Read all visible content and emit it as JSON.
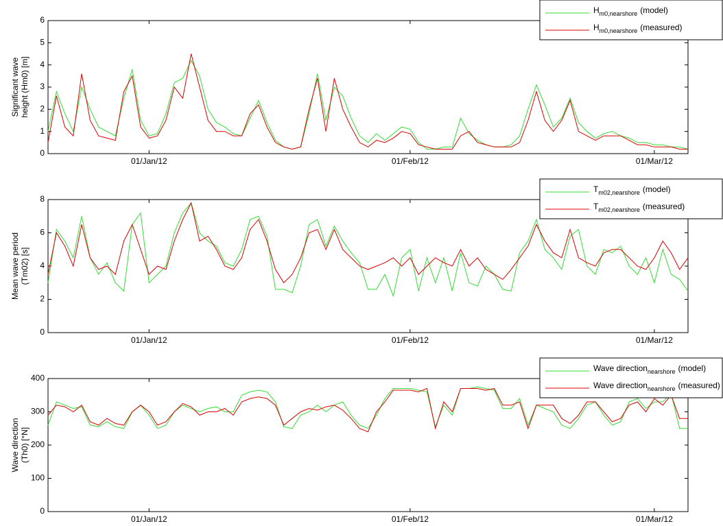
{
  "chart_data": [
    {
      "type": "line",
      "ylabel": [
        "Significant wave",
        "height (Hm0) [m]"
      ],
      "x": [
        "2011-12-20",
        "2011-12-21",
        "2011-12-22",
        "2011-12-23",
        "2011-12-24",
        "2011-12-25",
        "2011-12-26",
        "2011-12-27",
        "2011-12-28",
        "2011-12-29",
        "2011-12-30",
        "2011-12-31",
        "2012-01-01",
        "2012-01-02",
        "2012-01-03",
        "2012-01-04",
        "2012-01-05",
        "2012-01-06",
        "2012-01-07",
        "2012-01-08",
        "2012-01-09",
        "2012-01-10",
        "2012-01-11",
        "2012-01-12",
        "2012-01-13",
        "2012-01-14",
        "2012-01-15",
        "2012-01-16",
        "2012-01-17",
        "2012-01-18",
        "2012-01-19",
        "2012-01-20",
        "2012-01-21",
        "2012-01-22",
        "2012-01-23",
        "2012-01-24",
        "2012-01-25",
        "2012-01-26",
        "2012-01-27",
        "2012-01-28",
        "2012-01-29",
        "2012-01-30",
        "2012-01-31",
        "2012-02-01",
        "2012-02-02",
        "2012-02-03",
        "2012-02-04",
        "2012-02-05",
        "2012-02-06",
        "2012-02-07",
        "2012-02-08",
        "2012-02-09",
        "2012-02-10",
        "2012-02-11",
        "2012-02-12",
        "2012-02-13",
        "2012-02-14",
        "2012-02-15",
        "2012-02-16",
        "2012-02-17",
        "2012-02-18",
        "2012-02-19",
        "2012-02-20",
        "2012-02-21",
        "2012-02-22",
        "2012-02-23",
        "2012-02-24",
        "2012-02-25",
        "2012-02-26",
        "2012-02-27",
        "2012-02-28",
        "2012-02-29",
        "2012-03-01",
        "2012-03-02",
        "2012-03-03",
        "2012-03-04",
        "2012-03-05"
      ],
      "xlim": [
        "2011-12-20",
        "2012-03-05"
      ],
      "xticks": [
        {
          "value": "2012-01-01",
          "label": "01/Jan/12"
        },
        {
          "value": "2012-02-01",
          "label": "01/Feb/12"
        },
        {
          "value": "2012-03-01",
          "label": "01/Mar/12"
        }
      ],
      "ylim": [
        0,
        6
      ],
      "yticks": [
        0,
        1,
        2,
        3,
        4,
        5,
        6
      ],
      "series": [
        {
          "name": {
            "base": "H",
            "sub": "m0,nearshore",
            "suffix": "(model)"
          },
          "color": "#33dd33",
          "values": [
            1.0,
            2.8,
            1.8,
            1.0,
            3.0,
            2.0,
            1.2,
            1.0,
            0.8,
            2.5,
            3.8,
            1.5,
            0.8,
            0.9,
            1.8,
            3.2,
            3.4,
            4.2,
            3.5,
            2.0,
            1.4,
            1.2,
            0.9,
            0.8,
            1.6,
            2.4,
            1.4,
            0.6,
            0.3,
            0.2,
            0.3,
            1.8,
            3.6,
            1.5,
            3.0,
            2.6,
            1.6,
            0.8,
            0.5,
            0.9,
            0.6,
            0.9,
            1.2,
            1.1,
            0.5,
            0.2,
            0.2,
            0.3,
            0.3,
            1.6,
            0.9,
            0.6,
            0.4,
            0.3,
            0.3,
            0.4,
            0.8,
            2.0,
            3.1,
            2.2,
            1.2,
            1.6,
            2.5,
            1.4,
            1.0,
            0.7,
            0.9,
            1.0,
            0.8,
            0.7,
            0.5,
            0.5,
            0.4,
            0.4,
            0.3,
            0.3,
            0.2
          ]
        },
        {
          "name": {
            "base": "H",
            "sub": "m0,nearshore",
            "suffix": "(measured)"
          },
          "color": "#dd0000",
          "values": [
            0.5,
            2.6,
            1.2,
            0.8,
            3.6,
            1.5,
            0.8,
            0.7,
            0.6,
            2.8,
            3.5,
            1.2,
            0.7,
            0.8,
            1.5,
            3.0,
            2.5,
            4.5,
            3.0,
            1.5,
            1.0,
            1.0,
            0.8,
            0.8,
            1.8,
            2.2,
            1.2,
            0.5,
            0.3,
            0.2,
            0.3,
            2.0,
            3.4,
            1.0,
            3.4,
            2.0,
            1.2,
            0.5,
            0.3,
            0.6,
            0.5,
            0.7,
            1.0,
            0.9,
            0.4,
            0.3,
            0.2,
            0.2,
            0.2,
            0.8,
            1.0,
            0.5,
            0.4,
            0.3,
            0.3,
            0.3,
            0.5,
            1.5,
            2.8,
            1.5,
            1.0,
            1.5,
            2.4,
            1.0,
            0.8,
            0.6,
            0.8,
            0.8,
            0.8,
            0.6,
            0.4,
            0.4,
            0.3,
            0.3,
            0.3,
            0.2,
            0.2
          ]
        }
      ]
    },
    {
      "type": "line",
      "ylabel": [
        "Mean wave period",
        "(Tm02) [s]"
      ],
      "x": [
        "2011-12-20",
        "2011-12-21",
        "2011-12-22",
        "2011-12-23",
        "2011-12-24",
        "2011-12-25",
        "2011-12-26",
        "2011-12-27",
        "2011-12-28",
        "2011-12-29",
        "2011-12-30",
        "2011-12-31",
        "2012-01-01",
        "2012-01-02",
        "2012-01-03",
        "2012-01-04",
        "2012-01-05",
        "2012-01-06",
        "2012-01-07",
        "2012-01-08",
        "2012-01-09",
        "2012-01-10",
        "2012-01-11",
        "2012-01-12",
        "2012-01-13",
        "2012-01-14",
        "2012-01-15",
        "2012-01-16",
        "2012-01-17",
        "2012-01-18",
        "2012-01-19",
        "2012-01-20",
        "2012-01-21",
        "2012-01-22",
        "2012-01-23",
        "2012-01-24",
        "2012-01-25",
        "2012-01-26",
        "2012-01-27",
        "2012-01-28",
        "2012-01-29",
        "2012-01-30",
        "2012-01-31",
        "2012-02-01",
        "2012-02-02",
        "2012-02-03",
        "2012-02-04",
        "2012-02-05",
        "2012-02-06",
        "2012-02-07",
        "2012-02-08",
        "2012-02-09",
        "2012-02-10",
        "2012-02-11",
        "2012-02-12",
        "2012-02-13",
        "2012-02-14",
        "2012-02-15",
        "2012-02-16",
        "2012-02-17",
        "2012-02-18",
        "2012-02-19",
        "2012-02-20",
        "2012-02-21",
        "2012-02-22",
        "2012-02-23",
        "2012-02-24",
        "2012-02-25",
        "2012-02-26",
        "2012-02-27",
        "2012-02-28",
        "2012-02-29",
        "2012-03-01",
        "2012-03-02",
        "2012-03-03",
        "2012-03-04",
        "2012-03-05"
      ],
      "xlim": [
        "2011-12-20",
        "2012-03-05"
      ],
      "xticks": [
        {
          "value": "2012-01-01",
          "label": "01/Jan/12"
        },
        {
          "value": "2012-02-01",
          "label": "01/Feb/12"
        },
        {
          "value": "2012-03-01",
          "label": "01/Mar/12"
        }
      ],
      "ylim": [
        0,
        8
      ],
      "yticks": [
        0,
        2,
        4,
        6,
        8
      ],
      "series": [
        {
          "name": {
            "base": "T",
            "sub": "m02,nearshore",
            "suffix": "(model)"
          },
          "color": "#33dd33",
          "values": [
            3.0,
            6.2,
            5.5,
            4.5,
            7.0,
            4.5,
            3.5,
            4.2,
            3.0,
            2.5,
            6.5,
            7.2,
            3.0,
            3.5,
            4.0,
            6.0,
            7.2,
            7.8,
            6.0,
            5.5,
            5.2,
            4.2,
            4.0,
            5.0,
            6.8,
            7.0,
            5.8,
            2.6,
            2.6,
            2.4,
            4.0,
            6.5,
            6.8,
            5.2,
            6.4,
            5.5,
            4.8,
            4.2,
            2.6,
            2.6,
            3.5,
            2.2,
            4.5,
            5.0,
            2.5,
            4.5,
            3.0,
            4.5,
            2.5,
            4.8,
            3.0,
            2.8,
            4.0,
            3.5,
            2.6,
            2.5,
            4.8,
            5.5,
            6.8,
            5.0,
            4.5,
            3.8,
            5.8,
            6.2,
            4.0,
            3.5,
            5.0,
            4.8,
            5.2,
            4.0,
            3.5,
            4.5,
            3.0,
            5.0,
            3.5,
            3.2,
            2.5
          ]
        },
        {
          "name": {
            "base": "T",
            "sub": "m02,nearshore",
            "suffix": "(measured)"
          },
          "color": "#dd0000",
          "values": [
            3.5,
            6.0,
            5.2,
            4.0,
            6.5,
            4.5,
            3.8,
            4.0,
            3.5,
            5.5,
            6.5,
            5.0,
            3.5,
            4.0,
            3.8,
            5.5,
            6.8,
            7.8,
            5.5,
            5.8,
            5.0,
            4.0,
            3.8,
            4.5,
            6.2,
            6.8,
            5.5,
            3.8,
            3.0,
            3.5,
            4.5,
            6.0,
            6.2,
            5.0,
            6.2,
            5.0,
            4.5,
            4.0,
            3.8,
            4.0,
            4.2,
            4.5,
            4.0,
            4.5,
            3.5,
            4.0,
            4.5,
            4.2,
            4.0,
            5.0,
            4.0,
            4.5,
            3.8,
            3.5,
            3.2,
            3.8,
            4.5,
            5.2,
            6.5,
            5.5,
            4.8,
            4.5,
            6.2,
            4.5,
            4.2,
            4.0,
            4.8,
            5.0,
            5.0,
            4.5,
            4.0,
            3.8,
            4.5,
            5.5,
            4.8,
            3.8,
            4.5
          ]
        }
      ]
    },
    {
      "type": "line",
      "ylabel": [
        "Wave direction",
        "(Th0) [°N]"
      ],
      "x": [
        "2011-12-20",
        "2011-12-21",
        "2011-12-22",
        "2011-12-23",
        "2011-12-24",
        "2011-12-25",
        "2011-12-26",
        "2011-12-27",
        "2011-12-28",
        "2011-12-29",
        "2011-12-30",
        "2011-12-31",
        "2012-01-01",
        "2012-01-02",
        "2012-01-03",
        "2012-01-04",
        "2012-01-05",
        "2012-01-06",
        "2012-01-07",
        "2012-01-08",
        "2012-01-09",
        "2012-01-10",
        "2012-01-11",
        "2012-01-12",
        "2012-01-13",
        "2012-01-14",
        "2012-01-15",
        "2012-01-16",
        "2012-01-17",
        "2012-01-18",
        "2012-01-19",
        "2012-01-20",
        "2012-01-21",
        "2012-01-22",
        "2012-01-23",
        "2012-01-24",
        "2012-01-25",
        "2012-01-26",
        "2012-01-27",
        "2012-01-28",
        "2012-01-29",
        "2012-01-30",
        "2012-01-31",
        "2012-02-01",
        "2012-02-02",
        "2012-02-03",
        "2012-02-04",
        "2012-02-05",
        "2012-02-06",
        "2012-02-07",
        "2012-02-08",
        "2012-02-09",
        "2012-02-10",
        "2012-02-11",
        "2012-02-12",
        "2012-02-13",
        "2012-02-14",
        "2012-02-15",
        "2012-02-16",
        "2012-02-17",
        "2012-02-18",
        "2012-02-19",
        "2012-02-20",
        "2012-02-21",
        "2012-02-22",
        "2012-02-23",
        "2012-02-24",
        "2012-02-25",
        "2012-02-26",
        "2012-02-27",
        "2012-02-28",
        "2012-02-29",
        "2012-03-01",
        "2012-03-02",
        "2012-03-03",
        "2012-03-04",
        "2012-03-05"
      ],
      "xlim": [
        "2011-12-20",
        "2012-03-05"
      ],
      "xticks": [
        {
          "value": "2012-01-01",
          "label": "01/Jan/12"
        },
        {
          "value": "2012-02-01",
          "label": "01/Feb/12"
        },
        {
          "value": "2012-03-01",
          "label": "01/Mar/12"
        }
      ],
      "ylim": [
        0,
        400
      ],
      "yticks": [
        0,
        100,
        200,
        300,
        400
      ],
      "series": [
        {
          "name": {
            "base": "Wave direction",
            "sub": "nearshore",
            "suffix": "(model)"
          },
          "color": "#33dd33",
          "values": [
            260,
            330,
            320,
            310,
            315,
            260,
            255,
            270,
            255,
            250,
            300,
            320,
            290,
            250,
            260,
            300,
            320,
            310,
            300,
            310,
            315,
            300,
            300,
            350,
            360,
            365,
            360,
            330,
            255,
            250,
            290,
            300,
            320,
            300,
            320,
            330,
            290,
            260,
            250,
            290,
            340,
            370,
            370,
            370,
            365,
            360,
            255,
            320,
            290,
            370,
            370,
            375,
            370,
            365,
            310,
            310,
            340,
            260,
            320,
            310,
            300,
            260,
            250,
            280,
            320,
            330,
            290,
            260,
            270,
            330,
            340,
            310,
            330,
            330,
            355,
            250,
            250
          ]
        },
        {
          "name": {
            "base": "Wave direction",
            "sub": "nearshore",
            "suffix": "(measured)"
          },
          "color": "#dd0000",
          "values": [
            290,
            320,
            315,
            300,
            320,
            270,
            260,
            280,
            265,
            260,
            300,
            320,
            300,
            260,
            270,
            300,
            325,
            315,
            290,
            300,
            300,
            310,
            290,
            330,
            340,
            345,
            340,
            320,
            260,
            280,
            300,
            310,
            305,
            315,
            320,
            305,
            280,
            250,
            240,
            300,
            330,
            365,
            365,
            365,
            360,
            370,
            250,
            330,
            300,
            370,
            370,
            370,
            365,
            370,
            320,
            320,
            330,
            250,
            320,
            320,
            320,
            280,
            265,
            290,
            330,
            330,
            300,
            270,
            280,
            320,
            330,
            300,
            340,
            320,
            350,
            280,
            280
          ]
        }
      ]
    }
  ]
}
